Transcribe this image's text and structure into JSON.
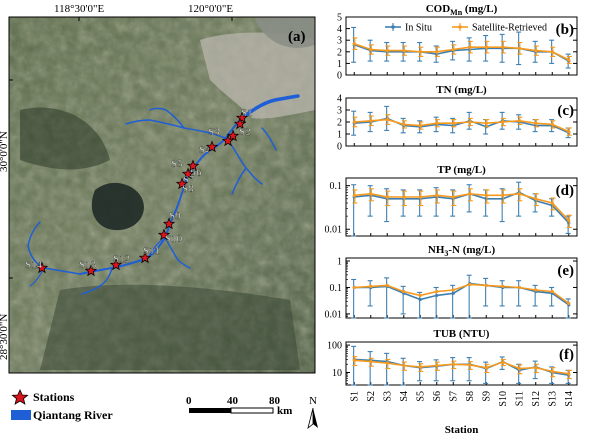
{
  "map": {
    "panel_label": "(a)",
    "lon_labels": [
      "118°30'0\"E",
      "120°0'0\"E"
    ],
    "lat_labels": [
      "30°0'0\"N",
      "28°30'0\"N"
    ],
    "stations": [
      {
        "id": "S1"
      },
      {
        "id": "S2"
      },
      {
        "id": "S3"
      },
      {
        "id": "S4"
      },
      {
        "id": "S5"
      },
      {
        "id": "S6"
      },
      {
        "id": "S7"
      },
      {
        "id": "S8"
      },
      {
        "id": "S9"
      },
      {
        "id": "S10"
      },
      {
        "id": "S11"
      },
      {
        "id": "S12"
      },
      {
        "id": "S13"
      },
      {
        "id": "S14"
      }
    ],
    "legend": {
      "stations": "Stations",
      "river": "Qiantang River"
    },
    "scale_bar": {
      "ticks": [
        "0",
        "40",
        "80"
      ],
      "unit": "km"
    },
    "north": "N",
    "colors": {
      "river": "#1f5fd6",
      "station_star": "#d8141c"
    }
  },
  "chart_data": [
    {
      "type": "line",
      "panel": "(b)",
      "title": "COD",
      "title_sub": "Mn",
      "title_unit": " (mg/L)",
      "scale": "linear",
      "ylim": [
        0,
        5
      ],
      "yticks": [
        "0",
        "1",
        "2",
        "3",
        "4",
        "5"
      ],
      "legend": [
        "In Situ",
        "Satellite-Retrieved"
      ],
      "series": [
        {
          "name": "In Situ",
          "values": [
            2.6,
            2.1,
            2.0,
            2.0,
            2.0,
            1.8,
            2.1,
            2.2,
            2.3,
            2.3,
            2.3,
            2.0,
            2.0,
            1.2
          ],
          "errors": [
            1.5,
            0.9,
            0.8,
            0.8,
            0.8,
            0.7,
            0.8,
            1.0,
            1.1,
            1.2,
            1.4,
            0.9,
            1.0,
            0.6
          ]
        },
        {
          "name": "Satellite-Retrieved",
          "values": [
            2.7,
            2.2,
            2.1,
            2.1,
            2.0,
            2.0,
            2.2,
            2.4,
            2.4,
            2.4,
            2.3,
            2.1,
            2.0,
            1.3
          ],
          "errors": [
            0.5,
            0.4,
            0.4,
            0.4,
            0.4,
            0.4,
            0.4,
            0.5,
            0.5,
            0.5,
            0.5,
            0.4,
            0.4,
            0.3
          ]
        }
      ]
    },
    {
      "type": "line",
      "panel": "(c)",
      "title": "TN",
      "title_sub": "",
      "title_unit": " (mg/L)",
      "scale": "linear",
      "ylim": [
        0,
        4
      ],
      "yticks": [
        "0",
        "1",
        "2",
        "3",
        "4"
      ],
      "series": [
        {
          "name": "In Situ",
          "values": [
            1.9,
            2.0,
            2.3,
            1.7,
            1.6,
            1.8,
            1.7,
            2.1,
            1.6,
            2.1,
            2.0,
            1.7,
            1.7,
            1.1
          ],
          "errors": [
            1.0,
            0.8,
            1.0,
            0.6,
            0.5,
            0.6,
            0.6,
            0.7,
            0.6,
            0.7,
            0.6,
            0.5,
            0.5,
            0.4
          ]
        },
        {
          "name": "Satellite-Retrieved",
          "values": [
            2.0,
            2.1,
            2.2,
            1.8,
            1.7,
            1.9,
            1.9,
            2.0,
            1.9,
            2.0,
            2.1,
            1.9,
            1.8,
            1.2
          ],
          "errors": [
            0.4,
            0.4,
            0.4,
            0.3,
            0.3,
            0.3,
            0.3,
            0.3,
            0.3,
            0.3,
            0.3,
            0.3,
            0.3,
            0.3
          ]
        }
      ]
    },
    {
      "type": "line",
      "panel": "(d)",
      "title": "TP",
      "title_sub": "",
      "title_unit": " (mg/L)",
      "scale": "log",
      "ylim": [
        0.007,
        0.15
      ],
      "yticks": [
        "0.01",
        "0.1"
      ],
      "ytick_values": [
        0.01,
        0.1
      ],
      "series": [
        {
          "name": "In Situ",
          "values": [
            0.055,
            0.06,
            0.05,
            0.05,
            0.05,
            0.055,
            0.05,
            0.065,
            0.05,
            0.05,
            0.07,
            0.045,
            0.035,
            0.014
          ],
          "errors": [
            0.05,
            0.04,
            0.035,
            0.03,
            0.03,
            0.035,
            0.03,
            0.04,
            0.03,
            0.035,
            0.05,
            0.02,
            0.015,
            0.006
          ]
        },
        {
          "name": "Satellite-Retrieved",
          "values": [
            0.06,
            0.065,
            0.055,
            0.055,
            0.055,
            0.06,
            0.055,
            0.065,
            0.06,
            0.06,
            0.065,
            0.05,
            0.04,
            0.016
          ],
          "errors": [
            0.02,
            0.02,
            0.02,
            0.02,
            0.02,
            0.02,
            0.02,
            0.02,
            0.02,
            0.02,
            0.02,
            0.015,
            0.012,
            0.005
          ]
        }
      ]
    },
    {
      "type": "line",
      "panel": "(e)",
      "title": "NH",
      "title_sub": "3",
      "title_unit": "-N (mg/L)",
      "scale": "log",
      "ylim": [
        0.007,
        1.3
      ],
      "yticks": [
        "0.01",
        "0.1",
        "1"
      ],
      "ytick_values": [
        0.01,
        0.1,
        1
      ],
      "series": [
        {
          "name": "In Situ",
          "values": [
            0.1,
            0.1,
            0.11,
            0.06,
            0.035,
            0.05,
            0.06,
            0.14,
            0.12,
            0.1,
            0.1,
            0.07,
            0.06,
            0.022
          ],
          "errors": [
            0.1,
            0.08,
            0.12,
            0.05,
            0.03,
            0.05,
            0.06,
            0.15,
            0.1,
            0.08,
            0.08,
            0.05,
            0.04,
            0.015
          ]
        },
        {
          "name": "Satellite-Retrieved",
          "values": [
            0.1,
            0.11,
            0.12,
            0.07,
            0.05,
            0.07,
            0.08,
            0.13,
            0.12,
            0.11,
            0.1,
            0.08,
            0.07,
            0.025
          ]
        }
      ]
    },
    {
      "type": "line",
      "panel": "(f)",
      "title": "TUB",
      "title_sub": "",
      "title_unit": " (NTU)",
      "scale": "log",
      "ylim": [
        3.5,
        130
      ],
      "yticks": [
        "10",
        "100"
      ],
      "ytick_values": [
        10,
        100
      ],
      "xlabel": "Station",
      "categories": [
        "S1",
        "S2",
        "S3",
        "S4",
        "S5",
        "S6",
        "S7",
        "S8",
        "S9",
        "S10",
        "S11",
        "S12",
        "S13",
        "S14"
      ],
      "series": [
        {
          "name": "In Situ",
          "values": [
            30,
            28,
            25,
            18,
            15,
            17,
            20,
            20,
            14,
            25,
            12,
            16,
            10,
            8
          ],
          "errors": [
            60,
            30,
            25,
            15,
            10,
            12,
            15,
            15,
            10,
            12,
            8,
            10,
            6,
            4
          ]
        },
        {
          "name": "Satellite-Retrieved",
          "values": [
            28,
            25,
            22,
            18,
            16,
            18,
            20,
            19,
            15,
            24,
            14,
            15,
            11,
            9
          ],
          "errors": [
            10,
            8,
            8,
            6,
            5,
            6,
            6,
            6,
            5,
            6,
            5,
            5,
            4,
            3
          ]
        }
      ]
    }
  ]
}
